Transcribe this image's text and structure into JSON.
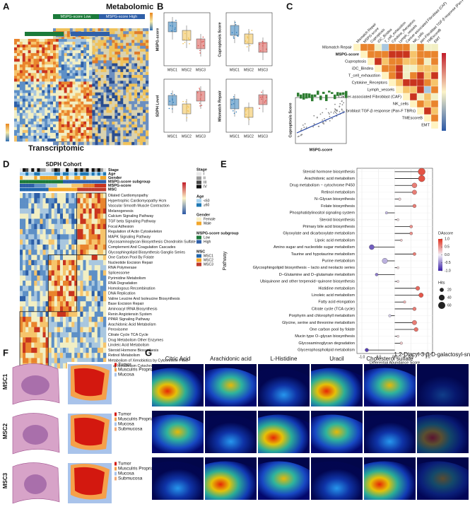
{
  "panels": {
    "A": {
      "label": "A",
      "top_title": "Metabolomic",
      "bottom_title": "Transcriptomic",
      "groups": [
        "MSPG-score Low",
        "MSPG-score High"
      ]
    },
    "B": {
      "label": "B",
      "ylabels": [
        "MSPG-score",
        "Cuproptosis Score",
        "SDPH Level",
        "Mismatch Repair"
      ],
      "categories": [
        "MSC1",
        "MSC2",
        "MSC3"
      ]
    },
    "C": {
      "label": "C",
      "terms": [
        "Mismatch Repair",
        "MSPG-score",
        "Cuproptosis",
        "iDC_Bindea",
        "T_cell_exhaustion",
        "Cytokine_Receptors",
        "Lymph_vessels",
        "Cancer-associated Fibroblast (CAF)",
        "NK_cells",
        "pan-Fibroblast TGF-β response (Pan-F TBRs)",
        "TMEscoreB",
        "EMT"
      ],
      "scatter_x": "MSPG-score",
      "scatter_y": "Cuproptosis Score"
    },
    "D": {
      "label": "D",
      "title": "SDPH Cohort",
      "annotations": [
        "Stage",
        "Age",
        "Gender",
        "MSPG-score subgroup",
        "MSPG-score",
        "MSC"
      ],
      "pathways": [
        "Dilated Cardiomyopathy",
        "Hypertrophic Cardiomyopathy Hcm",
        "Vascular Smooth Muscle Contraction",
        "Melanogenesis",
        "Calcium Signaling Pathway",
        "TGF beta Signaling Pathway",
        "Focal Adhesion",
        "Regulation of Actin Cytoskeleton",
        "MAPK Signaling Pathway",
        "Glycosaminoglycan Biosynthesis Chondroitin Sulfate",
        "Complement And Coagulation Cascades",
        "Glycosphingolipid Biosynthesis Ganglio Series",
        "One Carbon Pool By Folate",
        "Nucleotide Excision Repair",
        "RNA Polymerase",
        "Spliceosome",
        "Pyrimidine Metabolism",
        "RNA Degradation",
        "Homologous Recombination",
        "DNA Replication",
        "Valine Leucine And Isoleucine Biosynthesis",
        "Base Excision Repair",
        "Aminoacyl tRNA Biosynthesis",
        "Renin Angiotensin System",
        "PPAR Signaling Pathway",
        "Arachidonic Acid Metabolism",
        "Peroxisome",
        "Citrate Cycle TCA Cycle",
        "Drug Metabolism Other Enzymes",
        "Linoleic Acid Metabolism",
        "Steroid Hormone Biosynthesis",
        "Retinol Metabolism",
        "Metabolism of Xenobiotics by Cytochrome P450",
        "Drug Metabolism Cytochrome P450"
      ],
      "legends": [
        {
          "title": "Stage",
          "items": [
            "I",
            "II",
            "III",
            "IV"
          ],
          "colors": [
            "#e8e8e8",
            "#9a9a9a",
            "#4a4a4a",
            "#111111"
          ]
        },
        {
          "title": "Age",
          "items": [
            "<60",
            "≥60"
          ],
          "colors": [
            "#a7d3f0",
            "#1f78b4"
          ]
        },
        {
          "title": "Gender",
          "items": [
            "Female",
            "Male"
          ],
          "colors": [
            "#f7efc9",
            "#f2a62a"
          ]
        },
        {
          "title": "MSPG-score subgroup",
          "items": [
            "Low",
            "High"
          ],
          "colors": [
            "#1b7a3a",
            "#2f5fa8"
          ]
        },
        {
          "title": "MSC",
          "items": [
            "MSC1",
            "MSC2",
            "MSC3"
          ],
          "colors": [
            "#2166ac",
            "#f5a623",
            "#c0392b"
          ]
        }
      ]
    },
    "F": {
      "label": "F",
      "samples": [
        "MSC1",
        "MSC2",
        "MSC3"
      ],
      "legends": [
        [
          "Tumor",
          "Musculris Propria",
          "Mucosa"
        ],
        [
          "Tumor",
          "Musculris Propria",
          "Mucosa",
          "Submucosa"
        ],
        [
          "Tumor",
          "Musculris Propria",
          "Mucosa",
          "Submucosa"
        ]
      ]
    },
    "G": {
      "label": "G",
      "metabolites": [
        "Citric Acid",
        "Arachidonic acid",
        "L-Histidine",
        "Uracil",
        "Cholesterol sulfate",
        "1,2-Diacyl-3-β-D-galactosyl-sn-glycerol"
      ]
    }
  },
  "chart_data": {
    "type": "lollipop",
    "label": "E",
    "xlabel": "Differential Abundance Score",
    "ylabel": "Pathway",
    "categories": [
      "Steroid hormone biosynthesis",
      "Arachidonic acid metabolism",
      "Drug metabolism − cytochrome P450",
      "Retinol metabolism",
      "N−Glycan biosynthesis",
      "Folate biosynthesis",
      "Phosphatidylinositol signaling system",
      "Steroid biosynthesis",
      "Primary bile acid biosynthesis",
      "Glyoxylate and dicarboxylate metabolism",
      "Lipoic acid metabolism",
      "Amino sugar and nucleotide sugar metabolism",
      "Taurine and hypotaurine metabolism",
      "Purine metabolism",
      "Glycosphingolipid biosynthesis − lacto and neolacto series",
      "D−Glutamine and D−glutamate metabolism",
      "Ubiquinone and other terpenoid−quinone biosynthesis",
      "Histidine metabolism",
      "Linoleic acid metabolism",
      "Fatty acid elongation",
      "Citrate cycle (TCA cycle)",
      "Porphyrin and chlorophyll metabolism",
      "Glycine, serine and threonine metabolism",
      "One carbon pool by folate",
      "Mucin type O−glycan biosynthesis",
      "Glycosaminoglycan degradation",
      "Glycerophospholipid metabolism"
    ],
    "values": [
      0.82,
      0.82,
      0.6,
      0.6,
      0.15,
      0.6,
      -0.25,
      0.1,
      0.5,
      0.5,
      0.2,
      -0.7,
      0.6,
      -0.3,
      0.1,
      -0.55,
      0.1,
      0.7,
      0.8,
      0.3,
      0.6,
      -0.15,
      0.6,
      0.65,
      0.1,
      0.2,
      -0.85
    ],
    "sizes": [
      60,
      50,
      30,
      25,
      8,
      15,
      8,
      6,
      10,
      10,
      6,
      30,
      12,
      35,
      6,
      10,
      6,
      20,
      25,
      8,
      15,
      8,
      25,
      20,
      6,
      8,
      15
    ],
    "xlim": [
      -1.15,
      1.15
    ],
    "xticks": [
      {
        "value": -1,
        "label": "-1.0"
      },
      -0.5,
      {
        "value": 0,
        "label": "0.0"
      },
      0.5,
      {
        "value": 1,
        "label": "1.0"
      }
    ],
    "color_title": "DAscore",
    "color_low": "#3a1fa6",
    "color_mid": "#f4f0f8",
    "color_high": "#e0301e",
    "color_ticks": [
      {
        "value": 1,
        "label": "1.0"
      },
      0.5,
      {
        "value": 0,
        "label": "0.0"
      },
      -0.5,
      {
        "value": -1,
        "label": "-1.0"
      }
    ],
    "size_title": "Hits",
    "size_ticks": [
      20,
      40,
      60
    ],
    "grid": true
  }
}
